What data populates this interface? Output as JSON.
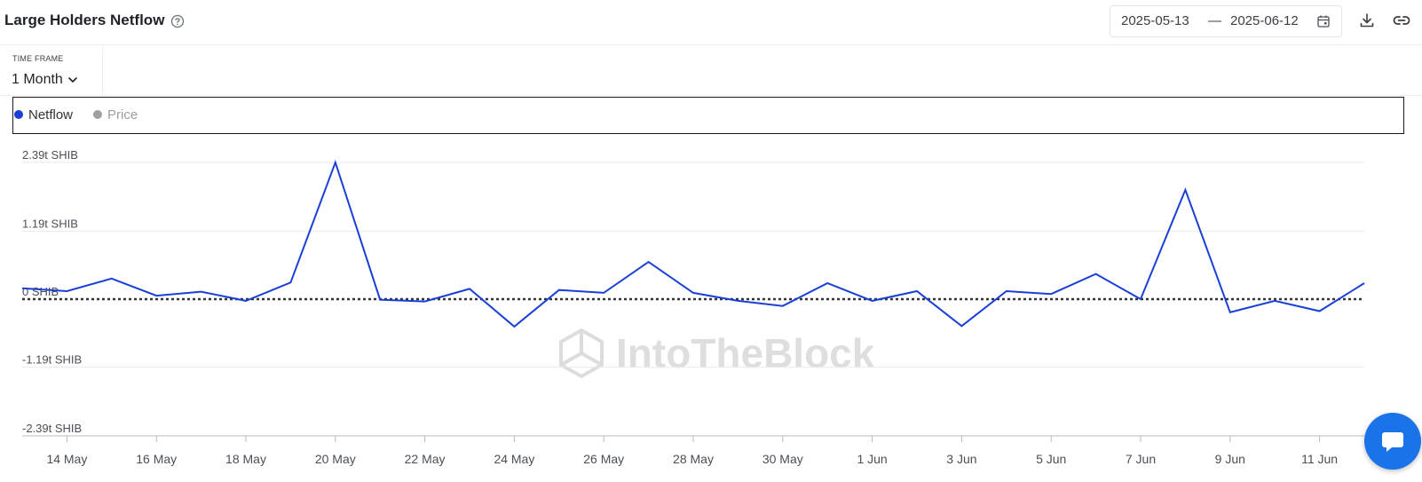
{
  "header": {
    "title": "Large Holders Netflow",
    "date_start": "2025-05-13",
    "date_separator": "—",
    "date_end": "2025-06-12"
  },
  "timeframe": {
    "label": "TIME FRAME",
    "value": "1 Month"
  },
  "legend": {
    "netflow": "Netflow",
    "price": "Price"
  },
  "watermark": "IntoTheBlock",
  "colors": {
    "netflow": "#1a3fd6",
    "price": "#a0a0a0",
    "zero_line": "#333333",
    "chat": "#1a73e8"
  },
  "chart_data": {
    "type": "line",
    "ylim": [
      -2.39,
      2.39
    ],
    "y_unit": "t SHIB",
    "y_ticks": [
      {
        "value": 2.39,
        "label": "2.39t SHIB"
      },
      {
        "value": 1.19,
        "label": "1.19t SHIB"
      },
      {
        "value": 0,
        "label": "0 SHIB"
      },
      {
        "value": -1.19,
        "label": "-1.19t SHIB"
      },
      {
        "value": -2.39,
        "label": "-2.39t SHIB"
      }
    ],
    "x_ticks": [
      "14 May",
      "16 May",
      "18 May",
      "20 May",
      "22 May",
      "24 May",
      "26 May",
      "28 May",
      "30 May",
      "1 Jun",
      "3 Jun",
      "5 Jun",
      "7 Jun",
      "9 Jun",
      "11 Jun"
    ],
    "x": [
      "2025-05-13",
      "2025-05-14",
      "2025-05-15",
      "2025-05-16",
      "2025-05-17",
      "2025-05-18",
      "2025-05-19",
      "2025-05-20",
      "2025-05-21",
      "2025-05-22",
      "2025-05-23",
      "2025-05-24",
      "2025-05-25",
      "2025-05-26",
      "2025-05-27",
      "2025-05-28",
      "2025-05-29",
      "2025-05-30",
      "2025-05-31",
      "2025-06-01",
      "2025-06-02",
      "2025-06-03",
      "2025-06-04",
      "2025-06-05",
      "2025-06-06",
      "2025-06-07",
      "2025-06-08",
      "2025-06-09",
      "2025-06-10",
      "2025-06-11",
      "2025-06-12"
    ],
    "series": [
      {
        "name": "Netflow",
        "values": [
          0.19,
          0.14,
          0.36,
          0.06,
          0.13,
          -0.03,
          0.29,
          2.39,
          -0.01,
          -0.04,
          0.18,
          -0.48,
          0.16,
          0.11,
          0.65,
          0.11,
          -0.03,
          -0.12,
          0.28,
          -0.03,
          0.14,
          -0.47,
          0.14,
          0.09,
          0.44,
          0.0,
          1.91,
          -0.23,
          -0.03,
          -0.21,
          0.28
        ]
      }
    ],
    "grid": true,
    "legend_position": "top-left"
  }
}
